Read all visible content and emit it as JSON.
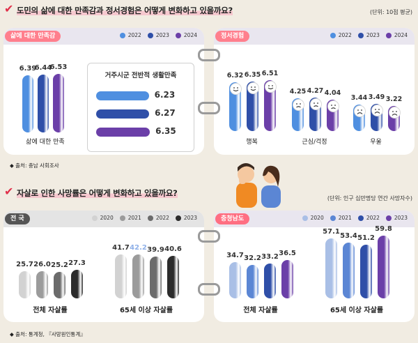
{
  "section1": {
    "title": "도민의 삶에 대한 만족감과 정서경험은 어떻게 변화하고 있을까요?",
    "unit": "(단위: 10점 평균)",
    "source": "◆ 출처: 충남 사회조사",
    "colors": {
      "2022": "#4f8fe0",
      "2023": "#2f4fa8",
      "2024": "#6b3fa8"
    },
    "left_card": {
      "header": "삶에 대한 만족감",
      "legend": [
        "2022",
        "2023",
        "2024"
      ],
      "box_title": "거주시군 전반적 생활만족"
    },
    "right_card": {
      "header": "정서경험",
      "legend": [
        "2022",
        "2023",
        "2024"
      ]
    }
  },
  "section2": {
    "title": "자살로 인한 사망률은 어떻게 변화하고 있을까요?",
    "unit": "(단위: 인구 십만명당 연간 사망자수)",
    "source": "◆ 출처: 통계청, 『사망원인통계』",
    "left_card": {
      "header": "전 국",
      "legend": [
        "2020",
        "2021",
        "2022",
        "2023"
      ]
    },
    "right_card": {
      "header": "충청남도",
      "legend": [
        "2020",
        "2021",
        "2022",
        "2023"
      ]
    },
    "gray_colors": [
      "#d2d2d2",
      "#9b9b9b",
      "#6b6b6b",
      "#2c2c2c"
    ],
    "blue_colors": [
      "#a9bfe6",
      "#5b86d4",
      "#2f4fa8",
      "#6b3fa8"
    ]
  },
  "chart_data": [
    {
      "type": "bar",
      "title": "삶에 대한 만족감",
      "categories": [
        "삶에 대한 만족"
      ],
      "series": [
        {
          "name": "2022",
          "values": [
            6.39
          ]
        },
        {
          "name": "2023",
          "values": [
            6.44
          ]
        },
        {
          "name": "2024",
          "values": [
            6.53
          ]
        }
      ]
    },
    {
      "type": "bar",
      "title": "거주시군 전반적 생활만족",
      "categories": [
        "2022",
        "2023",
        "2024"
      ],
      "values": [
        6.23,
        6.27,
        6.35
      ]
    },
    {
      "type": "bar",
      "title": "정서경험",
      "categories": [
        "행복",
        "근심/걱정",
        "우울"
      ],
      "series": [
        {
          "name": "2022",
          "values": [
            6.32,
            4.25,
            3.44
          ]
        },
        {
          "name": "2023",
          "values": [
            6.35,
            4.27,
            3.49
          ]
        },
        {
          "name": "2024",
          "values": [
            6.51,
            4.04,
            3.22
          ]
        }
      ]
    },
    {
      "type": "bar",
      "title": "전 국",
      "categories": [
        "전체 자살률",
        "65세 이상 자살률"
      ],
      "series": [
        {
          "name": "2020",
          "values": [
            25.7,
            41.7
          ]
        },
        {
          "name": "2021",
          "values": [
            26.0,
            42.2
          ]
        },
        {
          "name": "2022",
          "values": [
            25.2,
            39.9
          ]
        },
        {
          "name": "2023",
          "values": [
            27.3,
            40.6
          ]
        }
      ]
    },
    {
      "type": "bar",
      "title": "충청남도",
      "categories": [
        "전체 자살률",
        "65세 이상 자살률"
      ],
      "series": [
        {
          "name": "2020",
          "values": [
            34.7,
            57.1
          ]
        },
        {
          "name": "2021",
          "values": [
            32.2,
            53.4
          ]
        },
        {
          "name": "2022",
          "values": [
            33.2,
            51.2
          ]
        },
        {
          "name": "2023",
          "values": [
            36.5,
            59.8
          ]
        }
      ]
    }
  ]
}
